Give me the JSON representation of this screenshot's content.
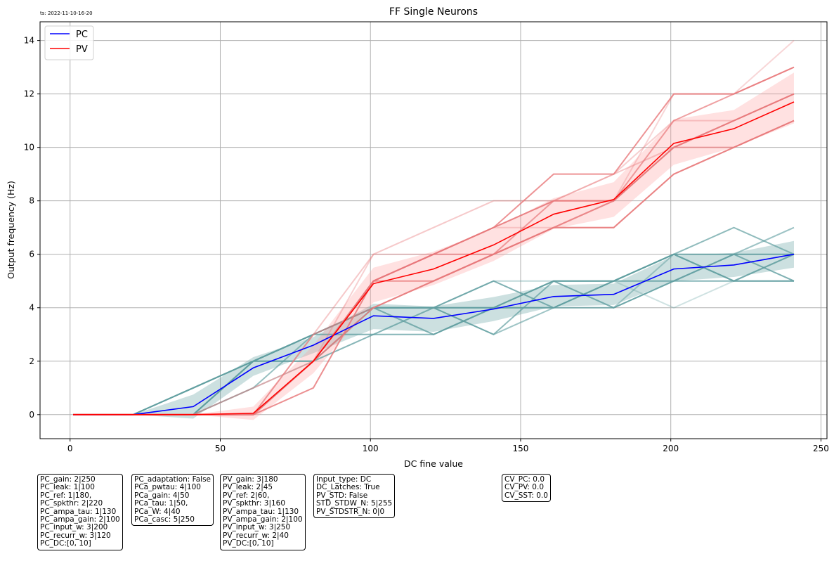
{
  "timestamp": "ts: 2022-11-10-16-20",
  "chart_data": {
    "type": "line",
    "title": "FF Single Neurons",
    "xlabel": "DC fine value",
    "ylabel": "Output frequency (Hz)",
    "xlim": [
      -10,
      252
    ],
    "ylim": [
      -0.9,
      14.7
    ],
    "xticks": [
      0,
      50,
      100,
      150,
      200,
      250
    ],
    "yticks": [
      0,
      2,
      4,
      6,
      8,
      10,
      12,
      14
    ],
    "grid": true,
    "legend_position": "top-left",
    "x": [
      1,
      21,
      41,
      61,
      81,
      101,
      121,
      141,
      161,
      181,
      201,
      221,
      241
    ],
    "series": [
      {
        "name": "PC",
        "color": "#0000ff",
        "values": [
          0,
          0,
          0.3,
          1.75,
          2.6,
          3.7,
          3.6,
          3.95,
          4.42,
          4.5,
          5.45,
          5.6,
          6.0
        ],
        "band_lower": [
          0,
          0,
          -0.15,
          1.45,
          2.3,
          3.2,
          3.1,
          3.5,
          4.05,
          4.1,
          5.0,
          5.15,
          5.5
        ],
        "band_upper": [
          0,
          0,
          0.75,
          2.15,
          2.9,
          4.15,
          4.05,
          4.4,
          4.85,
          4.9,
          5.95,
          6.05,
          6.5
        ],
        "trials_color": "#5f9ea0",
        "trials": [
          [
            0,
            0,
            0,
            2,
            3,
            4,
            4,
            4,
            5,
            5,
            6,
            6,
            6
          ],
          [
            0,
            0,
            1,
            2,
            2,
            3,
            3,
            4,
            4,
            4,
            5,
            5,
            5
          ],
          [
            0,
            0,
            0,
            1,
            2,
            4,
            3,
            4,
            5,
            4,
            5,
            6,
            7
          ],
          [
            0,
            0,
            1,
            2,
            3,
            3,
            4,
            3,
            4,
            5,
            6,
            5,
            6
          ],
          [
            0,
            0,
            0,
            2,
            3,
            4,
            4,
            5,
            4,
            5,
            5,
            6,
            5
          ],
          [
            0,
            0,
            1,
            2,
            2,
            4,
            3,
            4,
            5,
            4,
            6,
            5,
            6
          ],
          [
            0,
            0,
            0,
            2,
            3,
            4,
            4,
            3,
            5,
            5,
            6,
            7,
            6
          ],
          [
            0,
            0,
            1,
            2,
            3,
            3,
            4,
            5,
            5,
            4,
            5,
            6,
            7
          ],
          [
            0,
            0,
            0,
            1,
            3,
            4,
            4,
            4,
            4,
            5,
            6,
            5,
            5
          ],
          [
            0,
            0,
            1,
            2,
            2,
            4,
            3,
            4,
            5,
            5,
            4,
            5,
            6
          ]
        ]
      },
      {
        "name": "PV",
        "color": "#ff0000",
        "values": [
          0,
          0,
          0,
          0.05,
          2.0,
          4.9,
          5.45,
          6.35,
          7.5,
          8.05,
          10.15,
          10.7,
          11.7
        ],
        "band_lower": [
          0,
          0,
          0,
          -0.2,
          1.55,
          4.2,
          4.85,
          5.75,
          6.95,
          7.4,
          9.35,
          10.0,
          10.9
        ],
        "band_upper": [
          0,
          0,
          0,
          0.3,
          2.6,
          5.5,
          6.1,
          6.95,
          8.1,
          8.7,
          11.05,
          11.4,
          12.8
        ],
        "trials_color": "#e8787a",
        "trials": [
          [
            0,
            0,
            0,
            0,
            2,
            5,
            6,
            7,
            8,
            8,
            10,
            11,
            12
          ],
          [
            0,
            0,
            0,
            0,
            1,
            5,
            5,
            6,
            7,
            7,
            9,
            10,
            11
          ],
          [
            0,
            0,
            0,
            0,
            2,
            6,
            6,
            7,
            8,
            9,
            11,
            11,
            12
          ],
          [
            0,
            0,
            0,
            0,
            3,
            4,
            5,
            6,
            7,
            8,
            10,
            10,
            11
          ],
          [
            0,
            0,
            0,
            0,
            2,
            5,
            6,
            7,
            9,
            9,
            12,
            12,
            13
          ],
          [
            0,
            0,
            0,
            1,
            2,
            4,
            5,
            6,
            7,
            8,
            10,
            11,
            12
          ],
          [
            0,
            0,
            0,
            0,
            2,
            5,
            6,
            6,
            8,
            8,
            11,
            12,
            13
          ],
          [
            0,
            0,
            0,
            0,
            3,
            6,
            7,
            8,
            8,
            9,
            10,
            11,
            12
          ],
          [
            0,
            0,
            0,
            0,
            2,
            4,
            5,
            6,
            7,
            7,
            9,
            10,
            11
          ],
          [
            0,
            0,
            0,
            0,
            1,
            5,
            6,
            7,
            7,
            8,
            12,
            12,
            14
          ]
        ]
      }
    ]
  },
  "param_boxes": [
    {
      "id": "pc-params",
      "lines": [
        "PC_gain: 2|250",
        "PC_leak: 1|100",
        "PC_ref: 1|180,",
        "PC_spkthr: 2|220",
        "PC_ampa_tau: 1|130",
        "PC_ampa_gain: 2|100",
        "PC_input_w: 3|200",
        "PC_recurr_w: 3|120",
        "PC_DC:[0, 10]"
      ]
    },
    {
      "id": "pc-adaptation-params",
      "lines": [
        "PC_adaptation: False",
        "PCa_pwtau: 4|100",
        "PCa_gain: 4|50",
        "PCa_tau: 1|50,",
        "PCa_W: 4|40",
        "PCa_casc: 5|250"
      ]
    },
    {
      "id": "pv-params",
      "lines": [
        "PV_gain: 3|180",
        "PV_leak: 2|45",
        "PV_ref: 2|60,",
        "PV_spkthr: 3|160",
        "PV_ampa_tau: 1|130",
        "PV_ampa_gain: 2|100",
        "PV_input_w: 3|250",
        "PV_recurr_w: 2|40",
        "PV_DC:[0, 10]"
      ]
    },
    {
      "id": "input-params",
      "lines": [
        "Input_type: DC",
        "DC_Latches: True",
        "PV_STD: False",
        "STD_STDW_N: 5|255",
        "PV_STDSTR_N: 0|0"
      ]
    },
    {
      "id": "cv-params",
      "lines": [
        "CV_PC: 0.0",
        "CV_PV: 0.0",
        "CV_SST: 0.0"
      ]
    }
  ]
}
